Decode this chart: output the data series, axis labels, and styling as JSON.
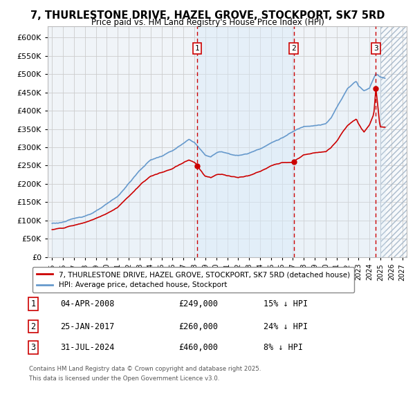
{
  "title": "7, THURLESTONE DRIVE, HAZEL GROVE, STOCKPORT, SK7 5RD",
  "subtitle": "Price paid vs. HM Land Registry's House Price Index (HPI)",
  "legend_line1": "7, THURLESTONE DRIVE, HAZEL GROVE, STOCKPORT, SK7 5RD (detached house)",
  "legend_line2": "HPI: Average price, detached house, Stockport",
  "footnote1": "Contains HM Land Registry data © Crown copyright and database right 2025.",
  "footnote2": "This data is licensed under the Open Government Licence v3.0.",
  "sales": [
    {
      "num": 1,
      "date": "04-APR-2008",
      "price": 249000,
      "hpi_diff": "15% ↓ HPI",
      "year": 2008.25
    },
    {
      "num": 2,
      "date": "25-JAN-2017",
      "price": 260000,
      "hpi_diff": "24% ↓ HPI",
      "year": 2017.07
    },
    {
      "num": 3,
      "date": "31-JUL-2024",
      "price": 460000,
      "hpi_diff": "8% ↓ HPI",
      "year": 2024.58
    }
  ],
  "red_line_color": "#cc0000",
  "blue_line_color": "#6699cc",
  "blue_fill_color": "#d8eaf8",
  "shade_between_sales": true,
  "vline_color": "#cc0000",
  "ylim": [
    0,
    630000
  ],
  "xlim_start": 1994.6,
  "xlim_end": 2027.4,
  "hatch_color": "#aabbcc",
  "bg_color": "#f0f4f8"
}
